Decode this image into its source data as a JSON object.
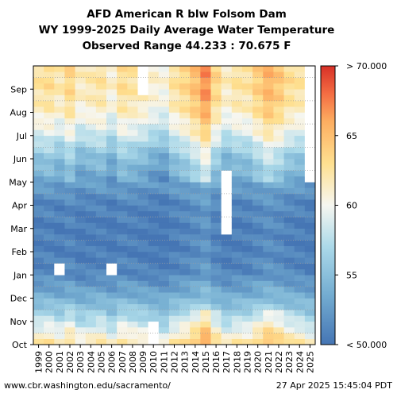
{
  "header": {
    "title_line1": "AFD American R blw Folsom Dam",
    "title_line2": "WY 1999-2025 Daily Average Water Temperature",
    "title_line3": "Observed Range 44.233 : 70.675 F"
  },
  "footer": {
    "source": "www.cbr.washington.edu/sacramento/",
    "timestamp": "27 Apr 2025 15:45:04 PDT"
  },
  "chart_data": {
    "type": "heatmap",
    "x_axis_label": "",
    "y_axis_label": "",
    "x_categories": [
      "1999",
      "2000",
      "2001",
      "2002",
      "2003",
      "2004",
      "2005",
      "2006",
      "2007",
      "2008",
      "2009",
      "2010",
      "2011",
      "2012",
      "2013",
      "2014",
      "2015",
      "2016",
      "2017",
      "2018",
      "2019",
      "2020",
      "2021",
      "2022",
      "2023",
      "2024",
      "2025"
    ],
    "y_categories": [
      "Oct",
      "Nov",
      "Dec",
      "Jan",
      "Feb",
      "Mar",
      "Apr",
      "May",
      "Jun",
      "Jul",
      "Aug",
      "Sep"
    ],
    "colorbar": {
      "min": 50,
      "max": 70,
      "ticks": [
        {
          "value": 50,
          "label": "< 50.000"
        },
        {
          "value": 55,
          "label": "55"
        },
        {
          "value": 60,
          "label": "60"
        },
        {
          "value": 65,
          "label": "65"
        },
        {
          "value": 70,
          "label": "> 70.000"
        }
      ],
      "colors": [
        "#4575b4",
        "#74add1",
        "#abd9e9",
        "#f6f6f0",
        "#fee090",
        "#fdae61",
        "#f46d43",
        "#d73027"
      ]
    },
    "monthly_typical_temp_F": [
      61.5,
      57.0,
      53.5,
      51.0,
      50.5,
      50.5,
      51.0,
      53.0,
      55.0,
      58.5,
      61.0,
      62.0
    ],
    "year_offset_F": [
      0.5,
      1.0,
      0.0,
      1.5,
      -0.5,
      0.0,
      0.5,
      -1.0,
      1.0,
      0.5,
      0.0,
      -1.0,
      -1.5,
      0.5,
      1.5,
      3.0,
      5.0,
      1.5,
      -0.5,
      0.5,
      0.5,
      2.0,
      3.5,
      2.5,
      1.0,
      0.5,
      -0.5
    ],
    "missing_blocks": [
      {
        "year": "2001",
        "from_month": 3.0,
        "to_month": 3.5
      },
      {
        "year": "2009",
        "from_month": 10.7,
        "to_month": 11.9
      },
      {
        "year": "2010",
        "from_month": 0.0,
        "to_month": 0.9
      },
      {
        "year": "2017",
        "from_month": 4.6,
        "to_month": 7.5
      },
      {
        "year": "2006",
        "from_month": 2.9,
        "to_month": 3.5
      },
      {
        "year": "2025",
        "from_month": 7.0,
        "to_month": 12.0
      }
    ]
  }
}
